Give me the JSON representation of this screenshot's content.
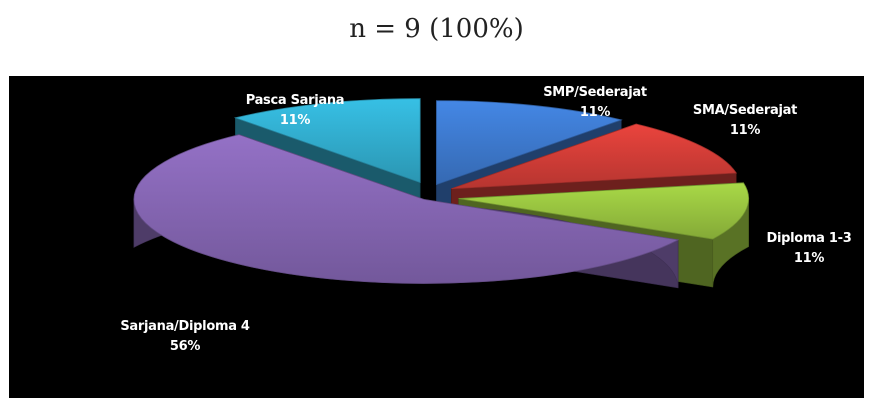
{
  "caption": "n = 9 (100%)",
  "chart_data": {
    "type": "pie",
    "title": "",
    "style": "3d-exploded",
    "slices": [
      {
        "name": "SMP/Sederajat",
        "value": 11,
        "percent_label": "11%",
        "color": "#3a72c2"
      },
      {
        "name": "SMA/Sederajat",
        "value": 11,
        "percent_label": "11%",
        "color": "#c63a34"
      },
      {
        "name": "Diploma 1-3",
        "value": 11,
        "percent_label": "11%",
        "color": "#8fb83c"
      },
      {
        "name": "Sarjana/Diploma 4",
        "value": 56,
        "percent_label": "56%",
        "color": "#7d60a8"
      },
      {
        "name": "Pasca Sarjana",
        "value": 11,
        "percent_label": "11%",
        "color": "#2fa3c2"
      }
    ]
  }
}
